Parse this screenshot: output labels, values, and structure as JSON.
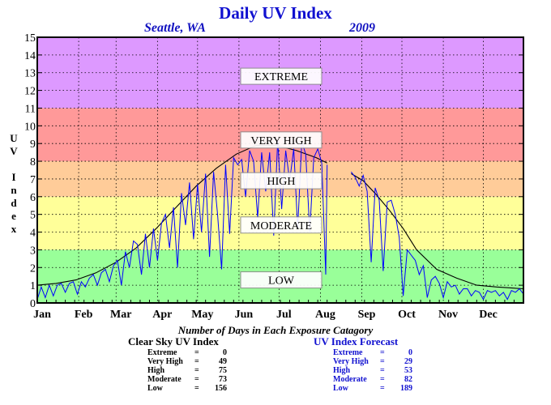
{
  "title": "Daily UV Index",
  "location": "Seattle, WA",
  "year": "2009",
  "y_label_letters": [
    "U",
    "V",
    "",
    "I",
    "n",
    "d",
    "e",
    "x"
  ],
  "subtitle": "Number of Days in Each Exposure Catagory",
  "clear_sky": {
    "header": "Clear Sky UV Index",
    "rows": [
      {
        "label": "Extreme",
        "value": "0"
      },
      {
        "label": "Very High",
        "value": "49"
      },
      {
        "label": "High",
        "value": "75"
      },
      {
        "label": "Moderate",
        "value": "73"
      },
      {
        "label": "Low",
        "value": "156"
      }
    ]
  },
  "forecast": {
    "header": "UV Index Forecast",
    "rows": [
      {
        "label": "Extreme",
        "value": "0"
      },
      {
        "label": "Very High",
        "value": "29"
      },
      {
        "label": "High",
        "value": "53"
      },
      {
        "label": "Moderate",
        "value": "82"
      },
      {
        "label": "Low",
        "value": "189"
      }
    ]
  },
  "colors": {
    "extreme": "#dd99ff",
    "very_high": "#ff9999",
    "high": "#ffcc99",
    "moderate": "#ffff99",
    "low": "#99ff99",
    "clear_sky_line": "#000000",
    "forecast_line": "#0000ff",
    "title": "#1010d0"
  },
  "chart_data": {
    "type": "line",
    "title": "Daily UV Index",
    "ylabel": "UV Index",
    "xlabel": "",
    "ylim": [
      0,
      15
    ],
    "yticks": [
      0,
      1,
      2,
      3,
      4,
      5,
      6,
      7,
      8,
      9,
      10,
      11,
      12,
      13,
      14,
      15
    ],
    "xlim": [
      1,
      365
    ],
    "months": [
      {
        "label": "Jan",
        "day": 1
      },
      {
        "label": "Feb",
        "day": 32
      },
      {
        "label": "Mar",
        "day": 60
      },
      {
        "label": "Apr",
        "day": 91
      },
      {
        "label": "May",
        "day": 121
      },
      {
        "label": "Jun",
        "day": 152
      },
      {
        "label": "Jul",
        "day": 182
      },
      {
        "label": "Aug",
        "day": 213
      },
      {
        "label": "Sep",
        "day": 244
      },
      {
        "label": "Oct",
        "day": 274
      },
      {
        "label": "Nov",
        "day": 305
      },
      {
        "label": "Dec",
        "day": 335
      }
    ],
    "bands": [
      {
        "label": "LOW",
        "from": 0,
        "to": 3,
        "color": "#99ff99"
      },
      {
        "label": "MODERATE",
        "from": 3,
        "to": 6,
        "color": "#ffff99"
      },
      {
        "label": "HIGH",
        "from": 6,
        "to": 8,
        "color": "#ffcc99"
      },
      {
        "label": "VERY HIGH",
        "from": 8,
        "to": 11,
        "color": "#ff9999"
      },
      {
        "label": "EXTREME",
        "from": 11,
        "to": 15,
        "color": "#dd99ff"
      }
    ],
    "band_label_values": [
      1.3,
      4.4,
      6.9,
      9.2,
      12.8
    ],
    "grid": true,
    "gap_days": [
      218,
      236
    ],
    "series": [
      {
        "name": "Clear Sky UV Index",
        "color": "#000000",
        "days": [
          1,
          15,
          30,
          45,
          60,
          75,
          90,
          105,
          120,
          135,
          150,
          165,
          172,
          180,
          195,
          210,
          218,
          236,
          245,
          255,
          265,
          275,
          285,
          300,
          315,
          330,
          345,
          365
        ],
        "values": [
          1.0,
          1.1,
          1.3,
          1.7,
          2.3,
          3.1,
          4.2,
          5.4,
          6.6,
          7.6,
          8.4,
          8.9,
          8.9,
          8.9,
          8.6,
          8.2,
          7.9,
          7.3,
          6.9,
          6.1,
          5.2,
          4.2,
          3.0,
          1.9,
          1.4,
          1.0,
          0.9,
          0.8
        ]
      },
      {
        "name": "UV Index Forecast",
        "color": "#0000ff",
        "days": [
          1,
          4,
          7,
          10,
          13,
          16,
          19,
          22,
          25,
          28,
          31,
          34,
          37,
          40,
          43,
          46,
          49,
          52,
          55,
          58,
          61,
          64,
          67,
          70,
          73,
          76,
          79,
          82,
          85,
          88,
          91,
          94,
          97,
          100,
          103,
          106,
          109,
          112,
          115,
          118,
          121,
          124,
          127,
          130,
          133,
          136,
          139,
          142,
          145,
          148,
          151,
          154,
          157,
          160,
          163,
          166,
          169,
          172,
          175,
          178,
          181,
          184,
          187,
          190,
          193,
          196,
          199,
          202,
          205,
          208,
          211,
          214,
          217,
          218,
          236,
          239,
          242,
          245,
          248,
          251,
          254,
          257,
          260,
          263,
          266,
          269,
          272,
          275,
          278,
          281,
          284,
          287,
          290,
          293,
          296,
          299,
          302,
          305,
          308,
          311,
          314,
          317,
          320,
          323,
          326,
          329,
          332,
          335,
          338,
          341,
          344,
          347,
          350,
          353,
          356,
          359,
          362,
          365
        ],
        "values": [
          0.2,
          0.9,
          0.3,
          1.0,
          0.4,
          1.0,
          1.1,
          0.6,
          1.1,
          1.2,
          0.5,
          1.2,
          0.9,
          1.4,
          1.6,
          1.0,
          1.7,
          1.9,
          1.2,
          2.1,
          2.4,
          1.0,
          2.9,
          2.0,
          3.5,
          3.3,
          1.6,
          3.9,
          2.0,
          4.2,
          2.4,
          4.5,
          5.0,
          3.1,
          5.4,
          2.0,
          6.2,
          4.4,
          6.8,
          3.6,
          6.7,
          4.0,
          7.3,
          2.6,
          7.4,
          5.0,
          1.9,
          7.8,
          3.9,
          8.2,
          7.8,
          8.1,
          6.0,
          8.6,
          8.0,
          4.8,
          8.5,
          6.3,
          8.5,
          3.8,
          9.2,
          5.3,
          8.6,
          6.9,
          8.7,
          4.2,
          9.1,
          8.4,
          4.0,
          8.2,
          8.7,
          7.9,
          1.6,
          7.8,
          7.4,
          7.1,
          6.6,
          7.2,
          6.3,
          2.3,
          6.5,
          5.8,
          1.8,
          5.7,
          5.8,
          5.0,
          3.7,
          0.4,
          3.0,
          2.7,
          2.4,
          1.6,
          2.1,
          0.3,
          1.3,
          1.5,
          1.1,
          0.3,
          1.2,
          0.9,
          1.0,
          0.5,
          0.8,
          0.8,
          0.4,
          0.7,
          0.6,
          0.2,
          0.7,
          0.6,
          0.7,
          0.4,
          0.6,
          0.2,
          0.7,
          0.6,
          0.8,
          0.5
        ]
      }
    ]
  }
}
